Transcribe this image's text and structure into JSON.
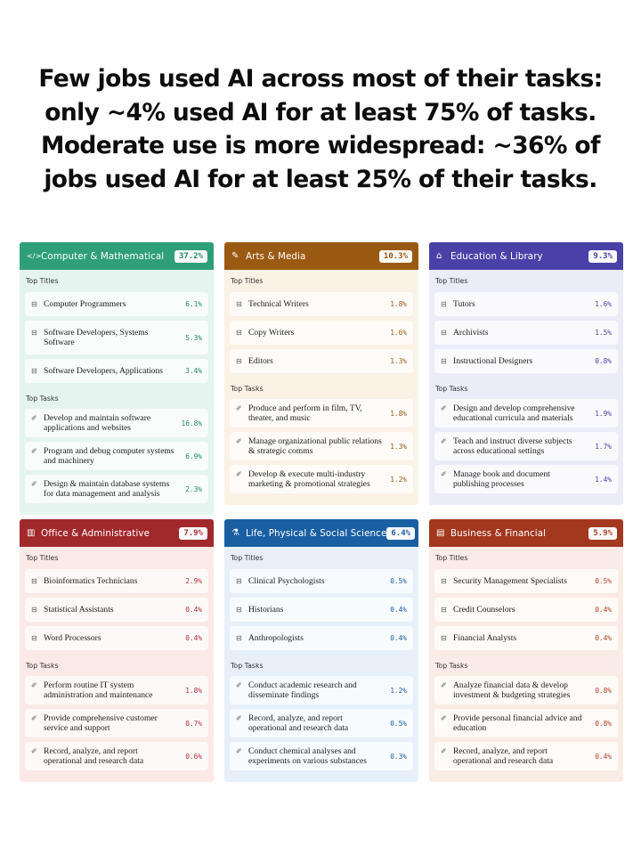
{
  "headline": {
    "line1": "Few jobs used AI across most of their tasks:",
    "line2": "only ~4% used AI for at least 75% of tasks.",
    "line3": "Moderate use is more widespread: ~36% of",
    "line4": "jobs used AI for at least 25% of their tasks."
  },
  "labels": {
    "top_titles": "Top Titles",
    "top_tasks": "Top Tasks"
  },
  "cards": [
    {
      "name": "Computer & Mathematical",
      "icon": "code-icon",
      "percent": "37.2%",
      "header_color": "#2e9f78",
      "body_color": "#e5f4ee",
      "accent": "#1f8a63",
      "titles": [
        {
          "label": "Computer Programmers",
          "value": "6.1%"
        },
        {
          "label": "Software Developers, Systems Software",
          "value": "5.3%"
        },
        {
          "label": "Software Developers, Applications",
          "value": "3.4%"
        }
      ],
      "tasks": [
        {
          "label": "Develop and maintain software applications and websites",
          "value": "16.8%"
        },
        {
          "label": "Program and debug computer systems and machinery",
          "value": "6.9%"
        },
        {
          "label": "Design & maintain database systems for data management and analysis",
          "value": "2.3%"
        }
      ]
    },
    {
      "name": "Arts & Media",
      "icon": "brush-icon",
      "percent": "10.3%",
      "header_color": "#9b5a12",
      "body_color": "#fbf1e4",
      "accent": "#9b5a12",
      "titles": [
        {
          "label": "Technical Writers",
          "value": "1.8%"
        },
        {
          "label": "Copy Writers",
          "value": "1.6%"
        },
        {
          "label": "Editors",
          "value": "1.3%"
        }
      ],
      "tasks": [
        {
          "label": "Produce and perform in film, TV, theater, and music",
          "value": "1.8%"
        },
        {
          "label": "Manage organizational public relations & strategic comms",
          "value": "1.3%"
        },
        {
          "label": "Develop & execute multi-industry marketing & promotional strategies",
          "value": "1.2%"
        }
      ]
    },
    {
      "name": "Education & Library",
      "icon": "graduation-cap-icon",
      "percent": "9.3%",
      "header_color": "#4a41a8",
      "body_color": "#ecebf8",
      "accent": "#4a41a8",
      "titles": [
        {
          "label": "Tutors",
          "value": "1.6%"
        },
        {
          "label": "Archivists",
          "value": "1.5%"
        },
        {
          "label": "Instructional Designers",
          "value": "0.8%"
        }
      ],
      "tasks": [
        {
          "label": "Design and develop comprehensive educational curricula and materials",
          "value": "1.9%"
        },
        {
          "label": "Teach and instruct diverse subjects across educational settings",
          "value": "1.7%"
        },
        {
          "label": "Manage book and document publishing processes",
          "value": "1.4%"
        }
      ]
    },
    {
      "name": "Office & Administrative",
      "icon": "building-icon",
      "percent": "7.9%",
      "header_color": "#a1282b",
      "body_color": "#fbe9e8",
      "accent": "#b03034",
      "titles": [
        {
          "label": "Bioinformatics Technicians",
          "value": "2.9%"
        },
        {
          "label": "Statistical Assistants",
          "value": "0.4%"
        },
        {
          "label": "Word Processors",
          "value": "0.4%"
        }
      ],
      "tasks": [
        {
          "label": "Perform routine IT system administration and maintenance",
          "value": "1.8%"
        },
        {
          "label": "Provide comprehensive customer service and support",
          "value": "0.7%"
        },
        {
          "label": "Record, analyze, and report operational and research data",
          "value": "0.6%"
        }
      ]
    },
    {
      "name": "Life, Physical & Social Science",
      "icon": "flask-icon",
      "percent": "6.4%",
      "header_color": "#1b5fa3",
      "body_color": "#e7f0f9",
      "accent": "#1b5fa3",
      "titles": [
        {
          "label": "Clinical Psychologists",
          "value": "0.5%"
        },
        {
          "label": "Historians",
          "value": "0.4%"
        },
        {
          "label": "Anthropologists",
          "value": "0.4%"
        }
      ],
      "tasks": [
        {
          "label": "Conduct academic research and disseminate findings",
          "value": "1.2%"
        },
        {
          "label": "Record, analyze, and report operational and research data",
          "value": "0.5%"
        },
        {
          "label": "Conduct chemical analyses and experiments on various substances",
          "value": "0.3%"
        }
      ]
    },
    {
      "name": "Business & Financial",
      "icon": "wallet-icon",
      "percent": "5.9%",
      "header_color": "#a3381e",
      "body_color": "#fbebe6",
      "accent": "#b0401f",
      "titles": [
        {
          "label": "Security Management Specialists",
          "value": "0.5%"
        },
        {
          "label": "Credit Counselors",
          "value": "0.4%"
        },
        {
          "label": "Financial Analysts",
          "value": "0.4%"
        }
      ],
      "tasks": [
        {
          "label": "Analyze financial data & develop investment & budgeting strategies",
          "value": "0.8%"
        },
        {
          "label": "Provide personal financial advice and education",
          "value": "0.8%"
        },
        {
          "label": "Record, analyze, and report operational and research data",
          "value": "0.4%"
        }
      ]
    }
  ]
}
